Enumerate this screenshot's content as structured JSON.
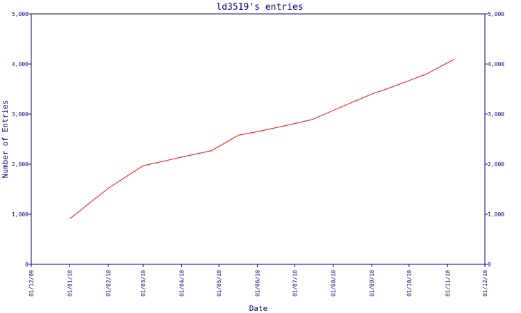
{
  "chart_data": {
    "type": "line",
    "title": "ld3519's entries",
    "xlabel": "Date",
    "ylabel": "Number of Entries",
    "x_ticks": [
      "01/12/09",
      "01/01/10",
      "01/02/10",
      "01/03/10",
      "01/04/10",
      "01/05/10",
      "01/06/10",
      "01/07/10",
      "01/08/10",
      "01/09/10",
      "01/10/10",
      "01/11/10",
      "01/12/10"
    ],
    "y_ticks": [
      "0",
      "1,000",
      "2,000",
      "3,000",
      "4,000",
      "5,000"
    ],
    "ylim": [
      0,
      5000
    ],
    "xlim": [
      "2009-12-01",
      "2010-12-01"
    ],
    "grid": false,
    "series": [
      {
        "color": "#ff0000",
        "x": [
          "2010-01-01",
          "2010-02-01",
          "2010-03-01",
          "2010-04-01",
          "2010-04-25",
          "2010-05-17",
          "2010-06-01",
          "2010-06-22",
          "2010-07-15",
          "2010-08-10",
          "2010-09-01",
          "2010-09-15",
          "2010-10-01",
          "2010-10-15",
          "2010-11-06"
        ],
        "y": [
          910,
          1520,
          1970,
          2140,
          2270,
          2580,
          2650,
          2760,
          2890,
          3170,
          3400,
          3520,
          3670,
          3800,
          4090
        ]
      }
    ]
  }
}
